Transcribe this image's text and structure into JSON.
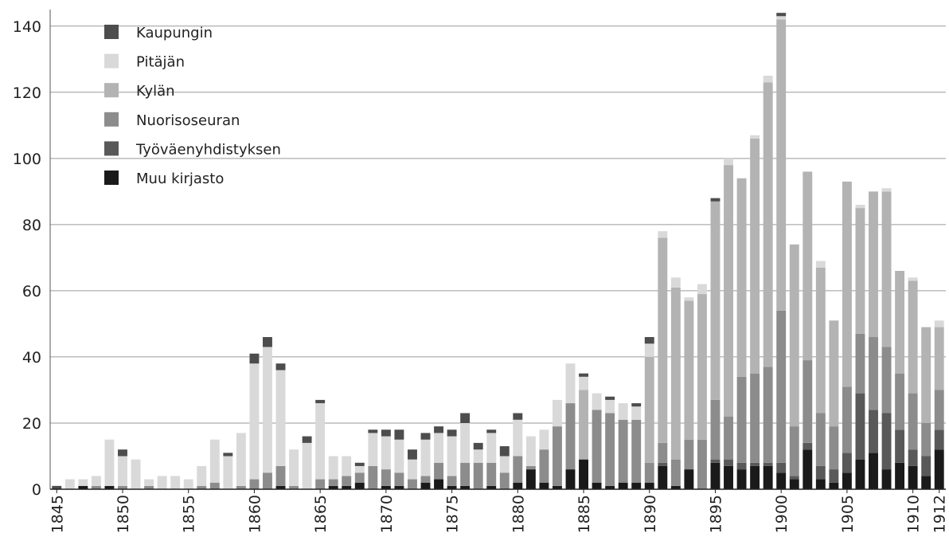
{
  "chart_data": {
    "type": "bar",
    "stacked": true,
    "orientation": "vertical",
    "xlabel": "",
    "ylabel": "",
    "ylim": [
      0,
      145
    ],
    "yticks": [
      0,
      20,
      40,
      60,
      80,
      100,
      120,
      140
    ],
    "grid": "horizontal",
    "legend_position": "top-left",
    "x": [
      1845,
      1846,
      1847,
      1848,
      1849,
      1850,
      1851,
      1852,
      1853,
      1854,
      1855,
      1856,
      1857,
      1858,
      1859,
      1860,
      1861,
      1862,
      1863,
      1864,
      1865,
      1866,
      1867,
      1868,
      1869,
      1870,
      1871,
      1872,
      1873,
      1874,
      1875,
      1876,
      1877,
      1878,
      1879,
      1880,
      1881,
      1882,
      1883,
      1884,
      1885,
      1886,
      1887,
      1888,
      1889,
      1890,
      1891,
      1892,
      1893,
      1894,
      1895,
      1896,
      1897,
      1898,
      1899,
      1900,
      1901,
      1902,
      1903,
      1904,
      1905,
      1906,
      1907,
      1908,
      1909,
      1910,
      1911,
      1912
    ],
    "xtick_labels": [
      "1845",
      "1850",
      "1855",
      "1860",
      "1865",
      "1870",
      "1875",
      "1880",
      "1885",
      "1890",
      "1895",
      "1900",
      "1905",
      "1910",
      "1912"
    ],
    "xtick_values": [
      1845,
      1850,
      1855,
      1860,
      1865,
      1870,
      1875,
      1880,
      1885,
      1890,
      1895,
      1900,
      1905,
      1910,
      1912
    ],
    "series": [
      {
        "name": "Muu kirjasto",
        "color": "#1a1a1a",
        "values": [
          0,
          0,
          1,
          0,
          1,
          0,
          0,
          0,
          0,
          0,
          0,
          0,
          0,
          0,
          0,
          0,
          0,
          1,
          0,
          0,
          0,
          1,
          1,
          2,
          0,
          1,
          1,
          0,
          2,
          3,
          1,
          1,
          0,
          1,
          0,
          2,
          6,
          2,
          1,
          6,
          9,
          2,
          1,
          2,
          2,
          2,
          7,
          1,
          6,
          0,
          8,
          7,
          6,
          7,
          7,
          5,
          3,
          12,
          3,
          2,
          5,
          9,
          11,
          6,
          8,
          7,
          4,
          12
        ]
      },
      {
        "name": "Työväenyhdistyksen",
        "color": "#595959",
        "values": [
          0,
          0,
          0,
          0,
          0,
          0,
          0,
          0,
          0,
          0,
          0,
          0,
          0,
          0,
          0,
          0,
          0,
          0,
          0,
          0,
          0,
          0,
          0,
          0,
          0,
          0,
          0,
          0,
          0,
          0,
          0,
          0,
          0,
          0,
          0,
          0,
          0,
          0,
          0,
          0,
          0,
          0,
          0,
          0,
          0,
          0,
          1,
          0,
          0,
          0,
          1,
          2,
          2,
          1,
          1,
          3,
          1,
          2,
          4,
          4,
          6,
          20,
          13,
          17,
          10,
          5,
          6,
          6
        ]
      },
      {
        "name": "Nuorisoseuran",
        "color": "#8c8c8c",
        "values": [
          0,
          0,
          0,
          1,
          0,
          1,
          0,
          1,
          0,
          0,
          0,
          1,
          2,
          0,
          1,
          3,
          5,
          6,
          1,
          0,
          3,
          2,
          3,
          3,
          7,
          5,
          4,
          3,
          2,
          5,
          3,
          7,
          8,
          7,
          5,
          8,
          1,
          10,
          18,
          20,
          0,
          22,
          22,
          19,
          19,
          6,
          6,
          8,
          9,
          15,
          18,
          13,
          26,
          27,
          29,
          46,
          15,
          25,
          16,
          13,
          20,
          18,
          22,
          20,
          17,
          17,
          10,
          12
        ]
      },
      {
        "name": "Kylän",
        "color": "#b3b3b3",
        "values": [
          0,
          0,
          0,
          0,
          0,
          0,
          0,
          0,
          0,
          0,
          0,
          0,
          0,
          0,
          0,
          0,
          0,
          0,
          0,
          0,
          0,
          0,
          0,
          0,
          0,
          0,
          0,
          0,
          0,
          0,
          0,
          0,
          0,
          0,
          0,
          0,
          0,
          0,
          0,
          0,
          21,
          0,
          0,
          0,
          0,
          32,
          62,
          52,
          42,
          44,
          60,
          76,
          60,
          71,
          86,
          88,
          55,
          57,
          44,
          32,
          62,
          38,
          44,
          47,
          31,
          34,
          29,
          19
        ]
      },
      {
        "name": "Pitäjän",
        "color": "#d9d9d9",
        "values": [
          0,
          3,
          2,
          3,
          14,
          9,
          9,
          2,
          4,
          4,
          3,
          6,
          13,
          10,
          16,
          35,
          38,
          29,
          11,
          14,
          23,
          7,
          6,
          2,
          10,
          10,
          10,
          6,
          11,
          9,
          12,
          12,
          4,
          9,
          5,
          11,
          9,
          6,
          8,
          12,
          4,
          5,
          4,
          5,
          4,
          4,
          2,
          3,
          1,
          3,
          0,
          2,
          0,
          1,
          2,
          1,
          0,
          0,
          2,
          0,
          0,
          1,
          0,
          1,
          0,
          1,
          0,
          2
        ]
      },
      {
        "name": "Kaupungin",
        "color": "#4d4d4d",
        "values": [
          1,
          0,
          0,
          0,
          0,
          2,
          0,
          0,
          0,
          0,
          0,
          0,
          0,
          1,
          0,
          3,
          3,
          2,
          0,
          2,
          1,
          0,
          0,
          1,
          1,
          2,
          3,
          3,
          2,
          2,
          2,
          3,
          2,
          1,
          3,
          2,
          0,
          0,
          0,
          0,
          1,
          0,
          1,
          0,
          1,
          2,
          0,
          0,
          0,
          0,
          1,
          0,
          0,
          0,
          0,
          1,
          0,
          0,
          0,
          0,
          0,
          0,
          0,
          0,
          0,
          0,
          0,
          0
        ]
      }
    ],
    "legend_order": [
      "Kaupungin",
      "Pitäjän",
      "Kylän",
      "Nuorisoseuran",
      "Työväenyhdistyksen",
      "Muu kirjasto"
    ]
  }
}
